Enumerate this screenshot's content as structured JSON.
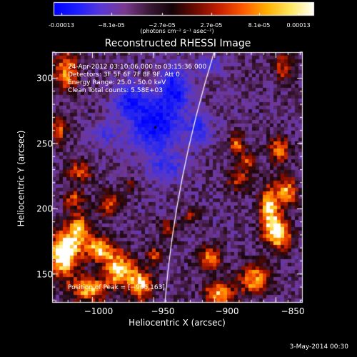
{
  "colorbar": {
    "ticks": [
      "-0.00013",
      "−8.1e-05",
      "−2.7e-05",
      "2.7e-05",
      "8.1e-05",
      "0.00013"
    ],
    "units": "(photons cm⁻² s⁻¹ asec⁻²)",
    "gradient": [
      "#0000ff",
      "#1e1eff",
      "#5a38d8",
      "#7b3a90",
      "#3c1a3a",
      "#120408",
      "#6e0a00",
      "#c82000",
      "#ff5a00",
      "#ffb000",
      "#ffe860",
      "#ffffff"
    ]
  },
  "title": "Reconstructed RHESSI Image",
  "annotations": {
    "line1": "24-Apr-2012 03:10:06.000 to 03:15:36.000",
    "line2": "Detectors: 3F 5F 6F 7F 8F 9F, Att 0",
    "line3": "Energy Range: 25.0 - 50.0 keV",
    "line4": "Clean     Total counts: 5.58E+03",
    "peak": "Position of Peak = [−905,163]"
  },
  "x_axis": {
    "label": "Heliocentric X (arcsec)",
    "ticks": [
      "−1000",
      "−950",
      "−900",
      "−850"
    ],
    "tick_values": [
      -1000,
      -950,
      -900,
      -850
    ],
    "range": [
      -1033,
      -828
    ]
  },
  "y_axis": {
    "label": "Heliocentric Y (arcsec)",
    "ticks": [
      "150",
      "200",
      "250",
      "300"
    ],
    "tick_values": [
      150,
      200,
      250,
      300
    ],
    "range": [
      128,
      320
    ]
  },
  "timestamp": "3-May-2014 00:30",
  "colors": {
    "background": "#000000",
    "text": "#ffffff",
    "positive_hot": "#ff6a00",
    "negative_cold": "#1e28ff"
  }
}
